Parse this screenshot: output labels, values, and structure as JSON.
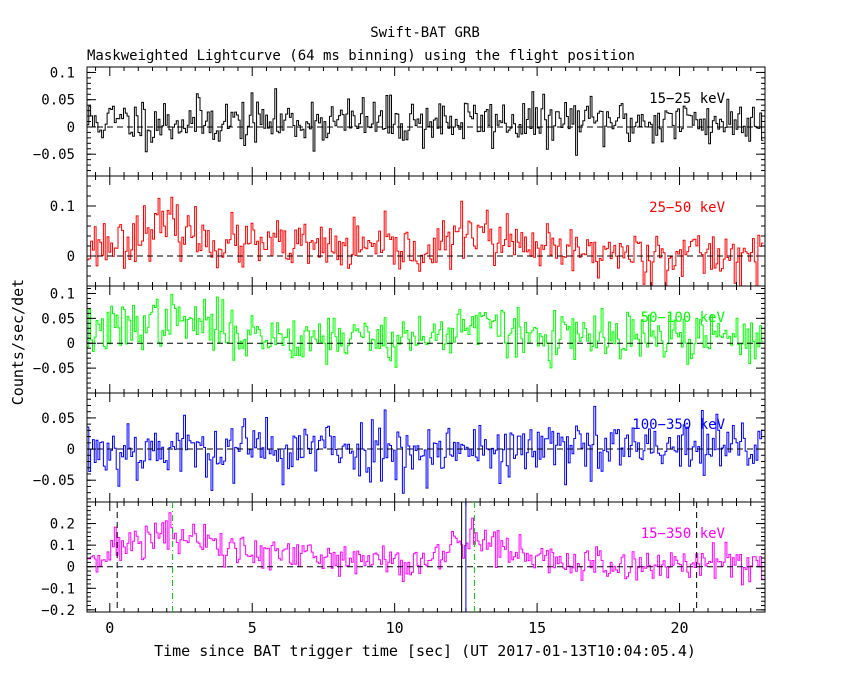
{
  "title": "Swift-BAT GRB",
  "subtitle": "Maskweighted Lightcurve (64 ms binning) using the flight position",
  "chart_data": {
    "type": "line",
    "xlabel": "Time since BAT trigger time [sec] (UT 2017-01-13T10:04:05.4)",
    "ylabel": "Counts/sec/det",
    "xlim": [
      -0.8,
      23.0
    ],
    "x_ticks": [
      "0",
      "5",
      "10",
      "15",
      "20"
    ],
    "bin_width_s": 0.064,
    "panels": [
      {
        "name": "15-25 keV",
        "label": "15−25 keV",
        "color": "#000000",
        "ylim": [
          -0.09,
          0.11
        ],
        "ticks": [
          {
            "v": 0.1,
            "t": "0.1"
          },
          {
            "v": 0.05,
            "t": "0.05"
          },
          {
            "v": 0,
            "t": "0"
          },
          {
            "v": -0.05,
            "t": "−0.05"
          }
        ],
        "profile": [
          [
            -0.8,
            0.01
          ],
          [
            23.0,
            0.01
          ]
        ],
        "noise": 0.022,
        "seed": 11
      },
      {
        "name": "25-50 keV",
        "label": "25−50 keV",
        "color": "#ff0000",
        "ylim": [
          -0.06,
          0.16
        ],
        "ticks": [
          {
            "v": 0.1,
            "t": "0.1"
          },
          {
            "v": 0,
            "t": "0"
          }
        ],
        "profile": [
          [
            -0.8,
            0.02
          ],
          [
            0.5,
            0.03
          ],
          [
            1.5,
            0.06
          ],
          [
            2.2,
            0.06
          ],
          [
            3.5,
            0.03
          ],
          [
            5,
            0.02
          ],
          [
            11.5,
            0.01
          ],
          [
            12.7,
            0.06
          ],
          [
            13.5,
            0.03
          ],
          [
            15,
            0.01
          ],
          [
            23.0,
            0.0
          ]
        ],
        "noise": 0.025,
        "seed": 23
      },
      {
        "name": "50-100 keV",
        "label": "50−100 keV",
        "color": "#00ff00",
        "ylim": [
          -0.1,
          0.115
        ],
        "ticks": [
          {
            "v": 0.1,
            "t": "0.1"
          },
          {
            "v": 0.05,
            "t": "0.05"
          },
          {
            "v": 0,
            "t": "0"
          },
          {
            "v": -0.05,
            "t": "−0.05"
          }
        ],
        "profile": [
          [
            -0.8,
            0.02
          ],
          [
            0.5,
            0.03
          ],
          [
            1.5,
            0.045
          ],
          [
            2.5,
            0.045
          ],
          [
            4,
            0.03
          ],
          [
            5,
            0.015
          ],
          [
            11.5,
            0.01
          ],
          [
            12.5,
            0.045
          ],
          [
            13.5,
            0.03
          ],
          [
            15,
            0.01
          ],
          [
            23.0,
            0.01
          ]
        ],
        "noise": 0.025,
        "seed": 37
      },
      {
        "name": "100-350 keV",
        "label": "100−350 keV",
        "color": "#0000ff",
        "ylim": [
          -0.085,
          0.09
        ],
        "ticks": [
          {
            "v": 0.05,
            "t": "0.05"
          },
          {
            "v": 0,
            "t": "0"
          },
          {
            "v": -0.05,
            "t": "−0.05"
          }
        ],
        "profile": [
          [
            -0.8,
            0.0
          ],
          [
            23.0,
            0.0
          ]
        ],
        "noise": 0.025,
        "seed": 53
      },
      {
        "name": "15-350 keV",
        "label": "15−350 keV",
        "color": "#ff00ff",
        "ylim": [
          -0.21,
          0.3
        ],
        "ticks": [
          {
            "v": 0.2,
            "t": "0.2"
          },
          {
            "v": 0.1,
            "t": "0.1"
          },
          {
            "v": 0,
            "t": "0"
          },
          {
            "v": -0.1,
            "t": "−0.1"
          },
          {
            "v": -0.2,
            "t": "−0.2"
          }
        ],
        "profile": [
          [
            -0.8,
            0.05
          ],
          [
            0.5,
            0.09
          ],
          [
            1.5,
            0.15
          ],
          [
            2.5,
            0.14
          ],
          [
            4,
            0.09
          ],
          [
            5,
            0.06
          ],
          [
            8,
            0.03
          ],
          [
            11.5,
            0.03
          ],
          [
            12.7,
            0.16
          ],
          [
            13.5,
            0.1
          ],
          [
            15,
            0.03
          ],
          [
            18,
            0.0
          ],
          [
            23.0,
            0.03
          ]
        ],
        "noise": 0.045,
        "seed": 71
      }
    ],
    "markers": [
      {
        "x": 0.26,
        "style": "dashed",
        "color": "#000000"
      },
      {
        "x": 2.2,
        "style": "dashdot",
        "color": "#00cc00"
      },
      {
        "x": 12.35,
        "style": "solid",
        "color": "#000000"
      },
      {
        "x": 12.5,
        "style": "solid",
        "color": "#0000cc"
      },
      {
        "x": 12.8,
        "style": "dashdot",
        "color": "#00cc00"
      },
      {
        "x": 20.6,
        "style": "dashed",
        "color": "#000000"
      }
    ]
  }
}
